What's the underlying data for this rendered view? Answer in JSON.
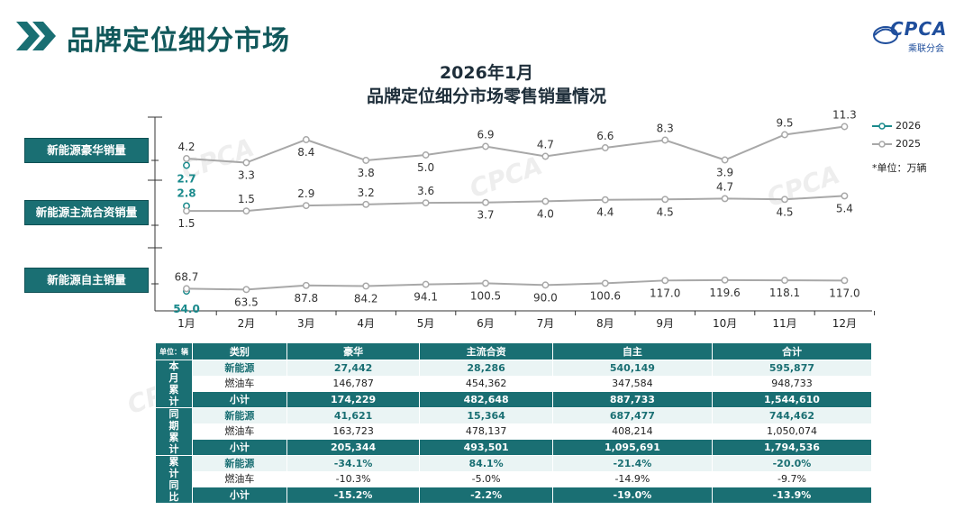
{
  "page": {
    "title": "品牌定位细分市场",
    "logo_text": "CPCA",
    "logo_sub": "乘联分会",
    "watermark": "CPCA"
  },
  "chart_title": {
    "line1": "2026年1月",
    "line2": "品牌定位细分市场零售销量情况"
  },
  "legend": {
    "items": [
      {
        "name": "2026",
        "color": "#1a8a8c"
      },
      {
        "name": "2025",
        "color": "#a8a8a8"
      }
    ],
    "unit": "*单位：万辆"
  },
  "side_labels": [
    "新能源豪华销量",
    "新能源主流合资销量",
    "新能源自主销量"
  ],
  "chart_data": {
    "type": "line",
    "title": "品牌定位细分市场零售销量情况",
    "categories": [
      "1月",
      "2月",
      "3月",
      "4月",
      "5月",
      "6月",
      "7月",
      "8月",
      "9月",
      "10月",
      "11月",
      "12月"
    ],
    "unit": "万辆",
    "panels": [
      {
        "name": "新能源豪华销量",
        "ylim": [
          1.0,
          13.0
        ],
        "series": [
          {
            "name": "2026",
            "values": [
              2.7
            ]
          },
          {
            "name": "2025",
            "values": [
              4.2,
              3.3,
              8.4,
              3.8,
              5.0,
              6.9,
              4.7,
              6.6,
              8.3,
              3.9,
              9.5,
              11.3
            ]
          }
        ]
      },
      {
        "name": "新能源主流合资销量",
        "ylim": [
          -5.0,
          9.0
        ],
        "series": [
          {
            "name": "2026",
            "values": [
              2.8
            ]
          },
          {
            "name": "2025",
            "values": [
              1.5,
              1.5,
              2.9,
              3.2,
              3.6,
              3.7,
              4.0,
              4.4,
              4.5,
              4.7,
              4.5,
              5.4
            ]
          }
        ]
      },
      {
        "name": "新能源自主销量",
        "ylim": [
          -20.0,
          300.0
        ],
        "series": [
          {
            "name": "2026",
            "values": [
              54.0
            ]
          },
          {
            "name": "2025",
            "values": [
              68.7,
              63.5,
              87.8,
              84.2,
              94.1,
              100.5,
              90.0,
              100.6,
              117.0,
              119.6,
              118.1,
              117.0
            ]
          }
        ]
      }
    ]
  },
  "table": {
    "unit": "单位：辆",
    "headers": [
      "类别",
      "豪华",
      "主流合资",
      "自主",
      "合计"
    ],
    "groups": [
      {
        "label": "本月累计",
        "rows": [
          {
            "cat": "新能源",
            "vals": [
              "27,442",
              "28,286",
              "540,149",
              "595,877"
            ],
            "kind": "nev"
          },
          {
            "cat": "燃油车",
            "vals": [
              "146,787",
              "454,362",
              "347,584",
              "948,733"
            ],
            "kind": "ice"
          },
          {
            "cat": "小计",
            "vals": [
              "174,229",
              "482,648",
              "887,733",
              "1,544,610"
            ],
            "kind": "sub"
          }
        ]
      },
      {
        "label": "同期累计",
        "rows": [
          {
            "cat": "新能源",
            "vals": [
              "41,621",
              "15,364",
              "687,477",
              "744,462"
            ],
            "kind": "nev"
          },
          {
            "cat": "燃油车",
            "vals": [
              "163,723",
              "478,137",
              "408,214",
              "1,050,074"
            ],
            "kind": "ice"
          },
          {
            "cat": "小计",
            "vals": [
              "205,344",
              "493,501",
              "1,095,691",
              "1,794,536"
            ],
            "kind": "sub"
          }
        ]
      },
      {
        "label": "累计同比",
        "rows": [
          {
            "cat": "新能源",
            "vals": [
              "-34.1%",
              "84.1%",
              "-21.4%",
              "-20.0%"
            ],
            "kind": "nev"
          },
          {
            "cat": "燃油车",
            "vals": [
              "-10.3%",
              "-5.0%",
              "-14.9%",
              "-9.7%"
            ],
            "kind": "ice"
          },
          {
            "cat": "小计",
            "vals": [
              "-15.2%",
              "-2.2%",
              "-19.0%",
              "-13.9%"
            ],
            "kind": "sub"
          }
        ]
      }
    ]
  }
}
